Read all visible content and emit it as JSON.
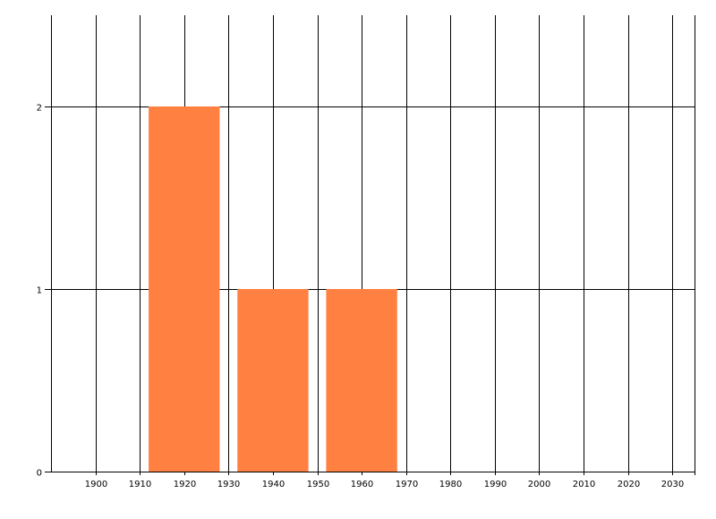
{
  "chart_data": {
    "type": "bar",
    "title": "",
    "xlabel": "",
    "ylabel": "",
    "bars": [
      {
        "x": 1920,
        "width": 16,
        "value": 2
      },
      {
        "x": 1940,
        "width": 16,
        "value": 1
      },
      {
        "x": 1960,
        "width": 16,
        "value": 1
      }
    ],
    "xlim": [
      1890,
      2035
    ],
    "ylim": [
      0,
      2.5
    ],
    "xticks": [
      1900,
      1910,
      1920,
      1930,
      1940,
      1950,
      1960,
      1970,
      1980,
      1990,
      2000,
      2010,
      2020,
      2030
    ],
    "yticks": [
      0,
      1,
      2
    ],
    "grid": true,
    "bar_color": "#FF8040",
    "grid_color": "#000000"
  }
}
